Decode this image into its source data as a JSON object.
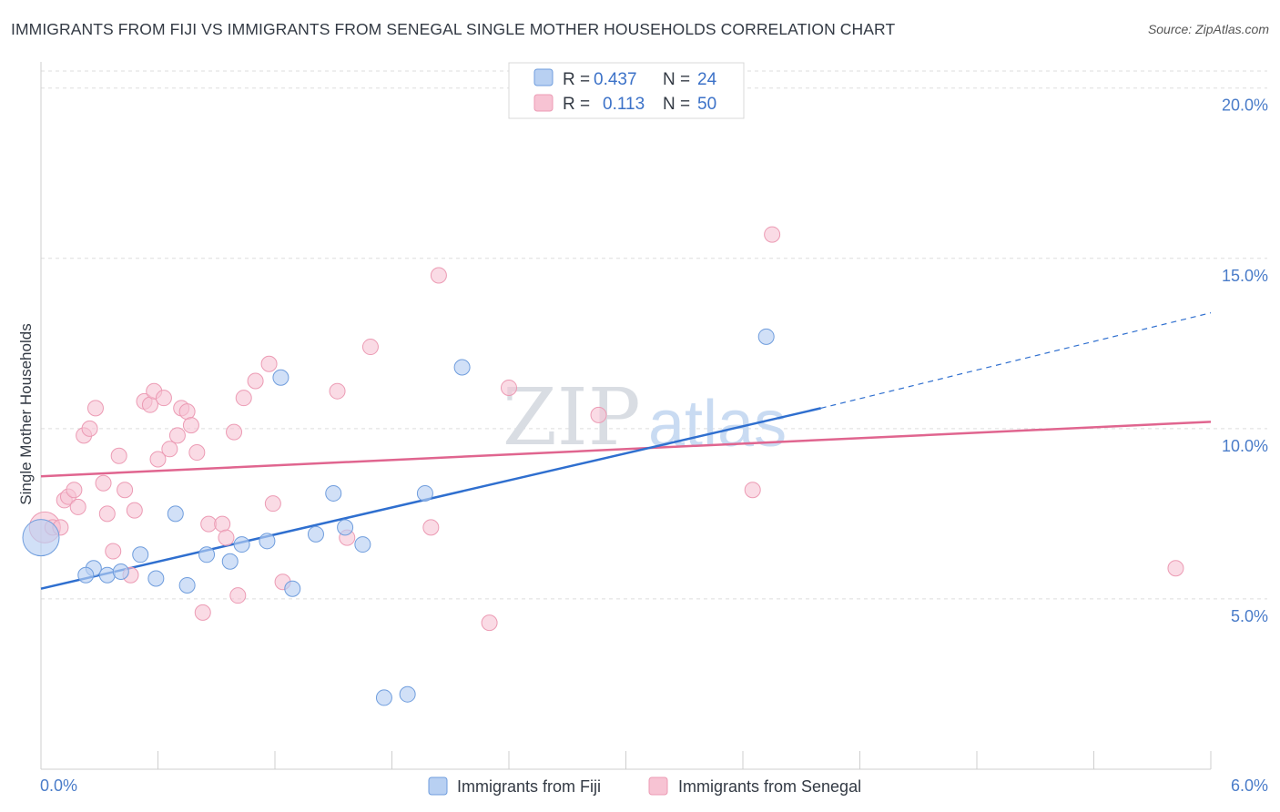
{
  "header": {
    "title": "IMMIGRANTS FROM FIJI VS IMMIGRANTS FROM SENEGAL SINGLE MOTHER HOUSEHOLDS CORRELATION CHART",
    "source": "Source: ZipAtlas.com"
  },
  "watermark": {
    "zip": "ZIP",
    "atlas": "atlas"
  },
  "legend": {
    "fiji": {
      "r_label": "R =",
      "r_value": "0.437",
      "n_label": "N =",
      "n_value": "24"
    },
    "senegal": {
      "r_label": "R =",
      "r_value": "0.113",
      "n_label": "N =",
      "n_value": "50"
    }
  },
  "bottom_legend": {
    "fiji": "Immigrants from Fiji",
    "senegal": "Immigrants from Senegal"
  },
  "colors": {
    "fiji_fill": "#b8d0f2",
    "fiji_stroke": "#6f9ddd",
    "fiji_line": "#2f6fcf",
    "senegal_fill": "#f7c3d3",
    "senegal_stroke": "#ec9bb4",
    "senegal_line": "#e0658f",
    "tick": "#4a7cc9",
    "grid": "#dddddd"
  },
  "chart_data": {
    "type": "scatter",
    "title": "IMMIGRANTS FROM FIJI VS IMMIGRANTS FROM SENEGAL SINGLE MOTHER HOUSEHOLDS CORRELATION CHART",
    "xlabel": "",
    "ylabel": "Single Mother Households",
    "xlim": [
      0,
      6
    ],
    "ylim": [
      0,
      20.5
    ],
    "x_tick_labels": [
      "0.0%",
      "6.0%"
    ],
    "y_ticks": [
      5,
      10,
      15,
      20
    ],
    "y_tick_labels": [
      "5.0%",
      "10.0%",
      "15.0%",
      "20.0%"
    ],
    "grid": true,
    "legend_position": "top-center",
    "series": [
      {
        "name": "Immigrants from Fiji",
        "points": [
          {
            "x": 0.0,
            "y": 6.8,
            "big": true
          },
          {
            "x": 0.27,
            "y": 5.9
          },
          {
            "x": 0.23,
            "y": 5.7
          },
          {
            "x": 0.34,
            "y": 5.7
          },
          {
            "x": 0.41,
            "y": 5.8
          },
          {
            "x": 0.51,
            "y": 6.3
          },
          {
            "x": 0.59,
            "y": 5.6
          },
          {
            "x": 0.69,
            "y": 7.5
          },
          {
            "x": 0.75,
            "y": 5.4
          },
          {
            "x": 0.85,
            "y": 6.3
          },
          {
            "x": 0.97,
            "y": 6.1
          },
          {
            "x": 1.03,
            "y": 6.6
          },
          {
            "x": 1.16,
            "y": 6.7
          },
          {
            "x": 1.23,
            "y": 11.5
          },
          {
            "x": 1.29,
            "y": 5.3
          },
          {
            "x": 1.41,
            "y": 6.9
          },
          {
            "x": 1.5,
            "y": 8.1
          },
          {
            "x": 1.56,
            "y": 7.1
          },
          {
            "x": 1.65,
            "y": 6.6
          },
          {
            "x": 1.76,
            "y": 2.1
          },
          {
            "x": 1.88,
            "y": 2.2
          },
          {
            "x": 1.97,
            "y": 8.1
          },
          {
            "x": 2.16,
            "y": 11.8
          },
          {
            "x": 3.72,
            "y": 12.7
          }
        ],
        "trend": {
          "x0": 0.0,
          "y0": 5.3,
          "x1": 4.0,
          "y1": 10.6,
          "dash_to_x": 6.0,
          "dash_to_y": 13.4
        }
      },
      {
        "name": "Immigrants from Senegal",
        "points": [
          {
            "x": 0.02,
            "y": 7.1,
            "big": true
          },
          {
            "x": 0.06,
            "y": 7.1
          },
          {
            "x": 0.1,
            "y": 7.1
          },
          {
            "x": 0.12,
            "y": 7.9
          },
          {
            "x": 0.14,
            "y": 8.0
          },
          {
            "x": 0.17,
            "y": 8.2
          },
          {
            "x": 0.19,
            "y": 7.7
          },
          {
            "x": 0.22,
            "y": 9.8
          },
          {
            "x": 0.25,
            "y": 10.0
          },
          {
            "x": 0.28,
            "y": 10.6
          },
          {
            "x": 0.32,
            "y": 8.4
          },
          {
            "x": 0.34,
            "y": 7.5
          },
          {
            "x": 0.37,
            "y": 6.4
          },
          {
            "x": 0.4,
            "y": 9.2
          },
          {
            "x": 0.43,
            "y": 8.2
          },
          {
            "x": 0.46,
            "y": 5.7
          },
          {
            "x": 0.48,
            "y": 7.6
          },
          {
            "x": 0.53,
            "y": 10.8
          },
          {
            "x": 0.56,
            "y": 10.7
          },
          {
            "x": 0.58,
            "y": 11.1
          },
          {
            "x": 0.6,
            "y": 9.1
          },
          {
            "x": 0.63,
            "y": 10.9
          },
          {
            "x": 0.66,
            "y": 9.4
          },
          {
            "x": 0.7,
            "y": 9.8
          },
          {
            "x": 0.72,
            "y": 10.6
          },
          {
            "x": 0.75,
            "y": 10.5
          },
          {
            "x": 0.77,
            "y": 10.1
          },
          {
            "x": 0.8,
            "y": 9.3
          },
          {
            "x": 0.83,
            "y": 4.6
          },
          {
            "x": 0.86,
            "y": 7.2
          },
          {
            "x": 0.93,
            "y": 7.2
          },
          {
            "x": 0.95,
            "y": 6.8
          },
          {
            "x": 0.99,
            "y": 9.9
          },
          {
            "x": 1.01,
            "y": 5.1
          },
          {
            "x": 1.04,
            "y": 10.9
          },
          {
            "x": 1.1,
            "y": 11.4
          },
          {
            "x": 1.17,
            "y": 11.9
          },
          {
            "x": 1.19,
            "y": 7.8
          },
          {
            "x": 1.24,
            "y": 5.5
          },
          {
            "x": 1.52,
            "y": 11.1
          },
          {
            "x": 1.57,
            "y": 6.8
          },
          {
            "x": 1.69,
            "y": 12.4
          },
          {
            "x": 2.0,
            "y": 7.1
          },
          {
            "x": 2.04,
            "y": 14.5
          },
          {
            "x": 2.3,
            "y": 4.3
          },
          {
            "x": 2.4,
            "y": 11.2
          },
          {
            "x": 2.86,
            "y": 10.4
          },
          {
            "x": 3.65,
            "y": 8.2
          },
          {
            "x": 3.75,
            "y": 15.7
          },
          {
            "x": 5.82,
            "y": 5.9
          }
        ],
        "trend": {
          "x0": 0.0,
          "y0": 8.6,
          "x1": 6.0,
          "y1": 10.2
        }
      }
    ]
  }
}
